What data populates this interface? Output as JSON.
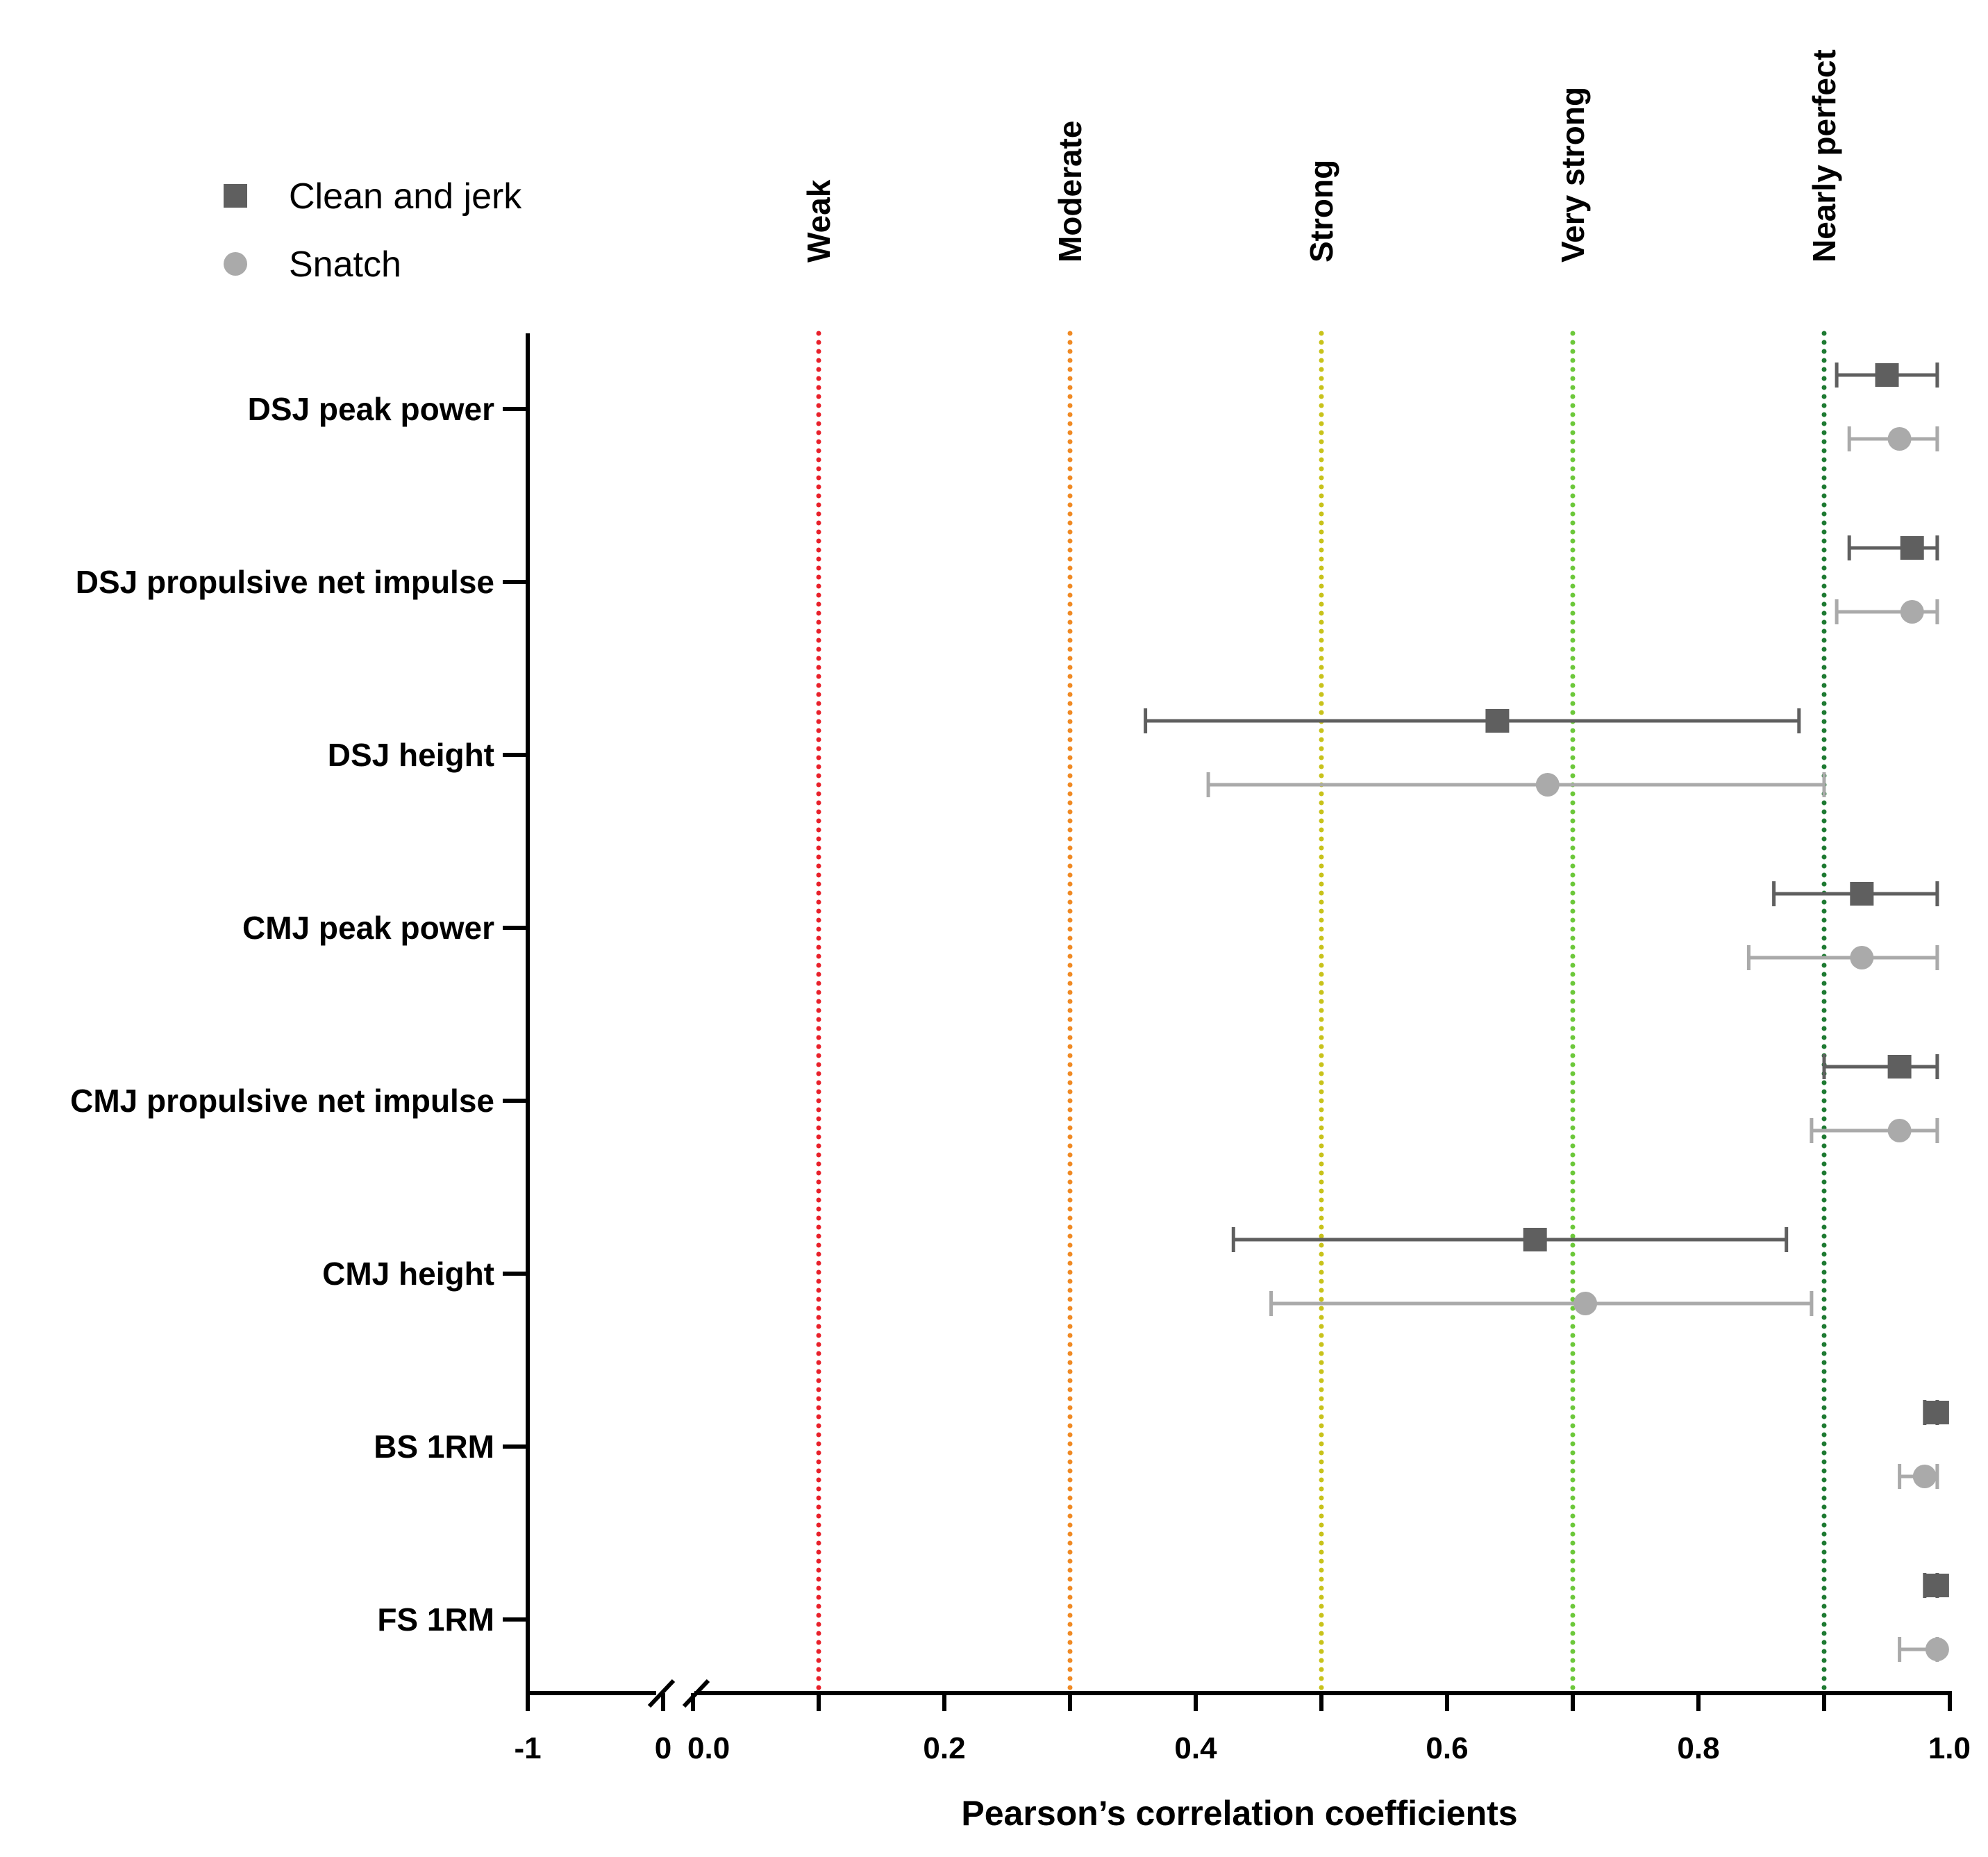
{
  "chart_data": {
    "type": "forest",
    "xlabel": "Pearson’s correlation coefficients",
    "x_axis": {
      "broken_axis": true,
      "left_segment_ticks": [
        "-1",
        "0"
      ],
      "ticks": [
        0.0,
        0.2,
        0.4,
        0.6,
        0.8,
        1.0
      ],
      "tick_labels": [
        "0.0",
        "0.2",
        "0.4",
        "0.6",
        "0.8",
        "1.0"
      ],
      "xlim": [
        0.0,
        1.0
      ]
    },
    "categories": [
      "DSJ peak power",
      "DSJ propulsive net impulse",
      "DSJ height",
      "CMJ peak power",
      "CMJ propulsive net impulse",
      "CMJ height",
      "BS 1RM",
      "FS 1RM"
    ],
    "thresholds": [
      {
        "label": "Weak",
        "value": 0.1,
        "color": "#e8202a"
      },
      {
        "label": "Moderate",
        "value": 0.3,
        "color": "#f08a24"
      },
      {
        "label": "Strong",
        "value": 0.5,
        "color": "#c8c21a"
      },
      {
        "label": "Very strong",
        "value": 0.7,
        "color": "#6cc83a"
      },
      {
        "label": "Nearly perfect",
        "value": 0.9,
        "color": "#1e7a32"
      }
    ],
    "series": [
      {
        "name": "Clean and jerk",
        "marker": "square",
        "color": "#5f5f5f",
        "values": [
          0.95,
          0.97,
          0.64,
          0.93,
          0.96,
          0.67,
          0.99,
          0.99
        ],
        "ci_low": [
          0.91,
          0.92,
          0.36,
          0.86,
          0.9,
          0.43,
          0.98,
          0.98
        ],
        "ci_high": [
          0.99,
          0.99,
          0.88,
          0.99,
          0.99,
          0.87,
          0.99,
          0.99
        ]
      },
      {
        "name": "Snatch",
        "marker": "circle",
        "color": "#aaaaaa",
        "values": [
          0.96,
          0.97,
          0.68,
          0.93,
          0.96,
          0.71,
          0.98,
          0.99
        ],
        "ci_low": [
          0.92,
          0.91,
          0.41,
          0.84,
          0.89,
          0.46,
          0.96,
          0.96
        ],
        "ci_high": [
          0.99,
          0.99,
          0.9,
          0.99,
          0.99,
          0.89,
          0.99,
          0.99
        ]
      }
    ]
  }
}
